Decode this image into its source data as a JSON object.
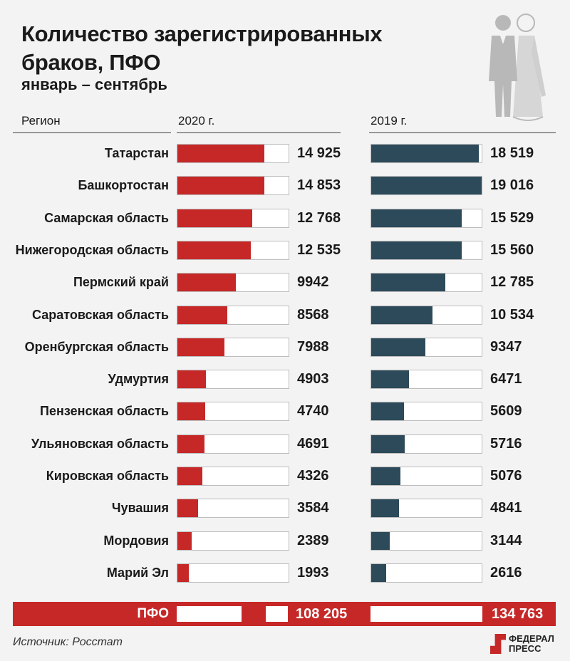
{
  "title": "Количество зарегистрированных браков, ПФО",
  "subtitle": "январь – сентябрь",
  "source": "Источник: Росстат",
  "logo": {
    "line1": "ФЕДЕРАЛ",
    "line2": "ПРЕСС"
  },
  "colors": {
    "bar_2020": "#c62828",
    "bar_2019": "#2c4a5a",
    "total_band": "#c62828"
  },
  "chart_data": {
    "type": "bar",
    "orientation": "horizontal",
    "column_header": "Регион",
    "categories": [
      "Татарстан",
      "Башкортостан",
      "Самарская область",
      "Нижегородская область",
      "Пермский край",
      "Саратовская область",
      "Оренбургская область",
      "Удмуртия",
      "Пензенская область",
      "Ульяновская область",
      "Кировская область",
      "Чувашия",
      "Мордовия",
      "Марий Эл"
    ],
    "series": [
      {
        "name": "2020 г.",
        "values": [
          14925,
          14853,
          12768,
          12535,
          9942,
          8568,
          7988,
          4903,
          4740,
          4691,
          4326,
          3584,
          2389,
          1993
        ],
        "labels": [
          "14 925",
          "14 853",
          "12 768",
          "12 535",
          "9942",
          "8568",
          "7988",
          "4903",
          "4740",
          "4691",
          "4326",
          "3584",
          "2389",
          "1993"
        ]
      },
      {
        "name": "2019 г.",
        "values": [
          18519,
          19016,
          15529,
          15560,
          12785,
          10534,
          9347,
          6471,
          5609,
          5716,
          5076,
          4841,
          3144,
          2616
        ],
        "labels": [
          "18 519",
          "19 016",
          "15 529",
          "15 560",
          "12 785",
          "10 534",
          "9347",
          "6471",
          "5609",
          "5716",
          "5076",
          "4841",
          "3144",
          "2616"
        ]
      }
    ],
    "xlim": [
      0,
      19016
    ],
    "total": {
      "label": "ПФО",
      "values": [
        108205,
        134763
      ],
      "labels": [
        "108 205",
        "134 763"
      ]
    }
  }
}
